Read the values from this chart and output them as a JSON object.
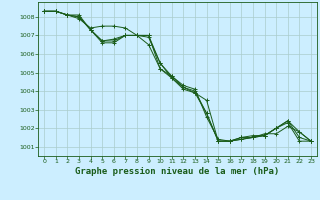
{
  "background_color": "#cceeff",
  "grid_color": "#aacccc",
  "line_color": "#1a5c1a",
  "marker_color": "#1a5c1a",
  "xlabel": "Graphe pression niveau de la mer (hPa)",
  "xlabel_fontsize": 6.5,
  "ylim": [
    1000.5,
    1008.8
  ],
  "xlim": [
    -0.5,
    23.5
  ],
  "yticks": [
    1001,
    1002,
    1003,
    1004,
    1005,
    1006,
    1007,
    1008
  ],
  "xticks": [
    0,
    1,
    2,
    3,
    4,
    5,
    6,
    7,
    8,
    9,
    10,
    11,
    12,
    13,
    14,
    15,
    16,
    17,
    18,
    19,
    20,
    21,
    22,
    23
  ],
  "series": [
    [
      1008.3,
      1008.3,
      1008.1,
      1008.1,
      1007.3,
      1006.7,
      1006.7,
      1007.0,
      1007.0,
      1007.0,
      1005.2,
      1004.8,
      1004.2,
      1004.0,
      1002.8,
      1001.3,
      1001.3,
      1001.4,
      1001.5,
      1001.6,
      1002.0,
      1002.3,
      1001.3,
      1001.3
    ],
    [
      1008.3,
      1008.3,
      1008.1,
      1008.0,
      1007.3,
      1006.7,
      1006.8,
      1007.0,
      1007.0,
      1006.9,
      1005.5,
      1004.8,
      1004.3,
      1004.1,
      1002.6,
      1001.4,
      1001.3,
      1001.5,
      1001.5,
      1001.7,
      1001.7,
      1002.1,
      1001.8,
      1001.3
    ],
    [
      1008.3,
      1008.3,
      1008.1,
      1007.9,
      1007.4,
      1007.5,
      1007.5,
      1007.4,
      1007.0,
      1006.5,
      1005.2,
      1004.7,
      1004.2,
      1003.9,
      1003.5,
      1001.3,
      1001.3,
      1001.5,
      1001.6,
      1001.6,
      1002.0,
      1002.4,
      1001.8,
      1001.3
    ],
    [
      1008.3,
      1008.3,
      1008.1,
      1008.0,
      1007.3,
      1006.6,
      1006.6,
      1007.0,
      1007.0,
      1007.0,
      1005.5,
      1004.7,
      1004.1,
      1003.9,
      1002.8,
      1001.3,
      1001.3,
      1001.4,
      1001.5,
      1001.6,
      1002.0,
      1002.4,
      1001.5,
      1001.3
    ]
  ]
}
